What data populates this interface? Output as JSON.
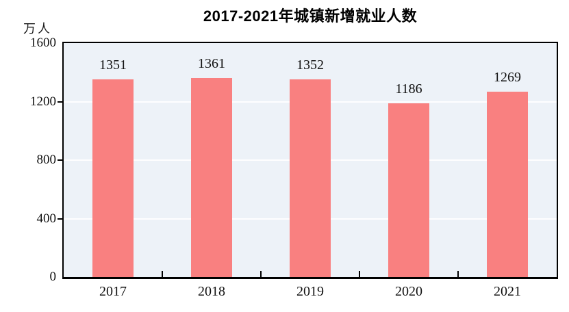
{
  "title": "2017-2021年城镇新增就业人数",
  "unit_label": "万人",
  "colors": {
    "bar": "#F98080",
    "plot_background": "#EDF2F8",
    "gridline": "#FFFFFF",
    "axis": "#000000",
    "text": "#111111"
  },
  "chart_data": {
    "type": "bar",
    "title": "2017-2021年城镇新增就业人数",
    "categories": [
      "2017",
      "2018",
      "2019",
      "2020",
      "2021"
    ],
    "values": [
      1351,
      1361,
      1352,
      1186,
      1269
    ],
    "xlabel": "",
    "ylabel": "万人",
    "ylim": [
      0,
      1600
    ],
    "yticks": [
      0,
      400,
      800,
      1200,
      1600
    ],
    "grid": true,
    "legend": false,
    "bar_labels_shown": true
  }
}
